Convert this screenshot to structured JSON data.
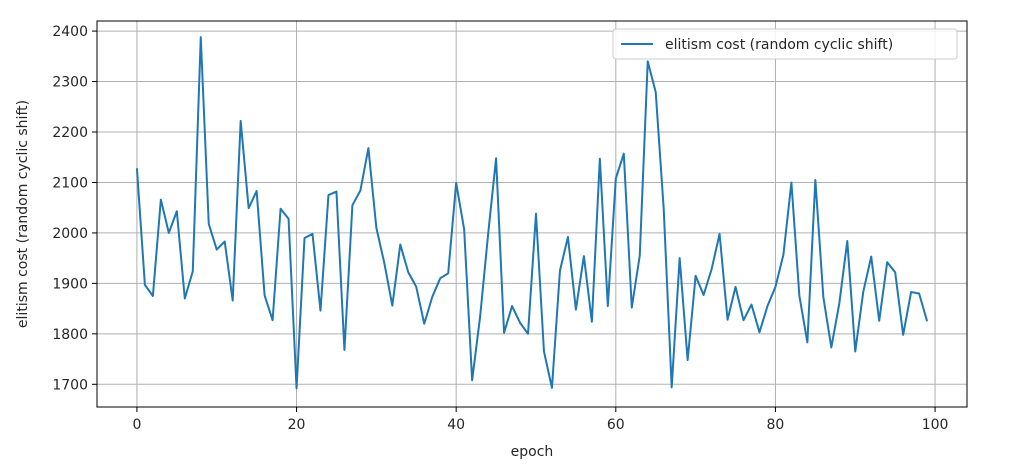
{
  "chart_data": {
    "type": "line",
    "xlabel": "epoch",
    "ylabel": "elitism cost (random cyclic shift)",
    "xlim": [
      -5,
      104
    ],
    "ylim": [
      1655,
      2420
    ],
    "xticks": [
      0,
      20,
      40,
      60,
      80,
      100
    ],
    "yticks": [
      1700,
      1800,
      1900,
      2000,
      2100,
      2200,
      2300,
      2400
    ],
    "grid": true,
    "legend_position": "top-right",
    "series": [
      {
        "name": "elitism cost (random cyclic shift)",
        "color": "#1f77b4",
        "x": [
          0,
          1,
          2,
          3,
          4,
          5,
          6,
          7,
          8,
          9,
          10,
          11,
          12,
          13,
          14,
          15,
          16,
          17,
          18,
          19,
          20,
          21,
          22,
          23,
          24,
          25,
          26,
          27,
          28,
          29,
          30,
          31,
          32,
          33,
          34,
          35,
          36,
          37,
          38,
          39,
          40,
          41,
          42,
          43,
          44,
          45,
          46,
          47,
          48,
          49,
          50,
          51,
          52,
          53,
          54,
          55,
          56,
          57,
          58,
          59,
          60,
          61,
          62,
          63,
          64,
          65,
          66,
          67,
          68,
          69,
          70,
          71,
          72,
          73,
          74,
          75,
          76,
          77,
          78,
          79,
          80,
          81,
          82,
          83,
          84,
          85,
          86,
          87,
          88,
          89,
          90,
          91,
          92,
          93,
          94,
          95,
          96,
          97,
          98,
          99
        ],
        "values": [
          2128,
          1897,
          1875,
          2066,
          2000,
          2043,
          1870,
          1924,
          2388,
          2018,
          1967,
          1983,
          1866,
          2222,
          2049,
          2083,
          1876,
          1827,
          2048,
          2028,
          1692,
          1990,
          1998,
          1846,
          2075,
          2082,
          1768,
          2055,
          2084,
          2168,
          2010,
          1940,
          1856,
          1977,
          1922,
          1893,
          1820,
          1873,
          1910,
          1920,
          2099,
          2007,
          1708,
          1834,
          1997,
          2148,
          1802,
          1855,
          1822,
          1800,
          2038,
          1765,
          1693,
          1925,
          1992,
          1848,
          1954,
          1824,
          2147,
          1855,
          2108,
          2157,
          1852,
          1955,
          2340,
          2279,
          2048,
          1694,
          1950,
          1748,
          1915,
          1877,
          1928,
          1998,
          1828,
          1893,
          1827,
          1858,
          1803,
          1855,
          1893,
          1957,
          2100,
          1875,
          1783,
          2105,
          1873,
          1773,
          1860,
          1984,
          1765,
          1883,
          1953,
          1826,
          1942,
          1922,
          1798,
          1883,
          1880,
          1825
        ]
      }
    ]
  }
}
